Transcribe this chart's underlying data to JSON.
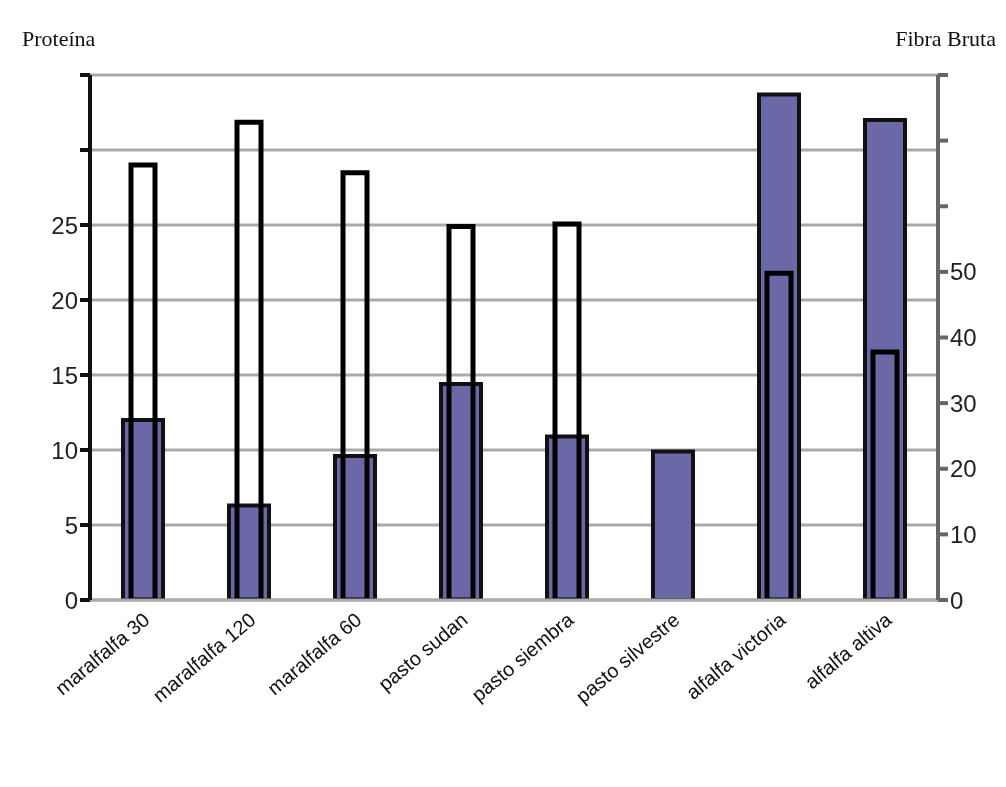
{
  "chart_data": {
    "type": "bar",
    "ylabel": "Proteína",
    "y2label": "Fibra Bruta",
    "categories": [
      "maralfalfa 30",
      "maralfalfa 120",
      "maralfalfa 60",
      "pasto sudan",
      "pasto siembra",
      "pasto silvestre",
      "alfalfa victoria",
      "alfalfa altiva"
    ],
    "series": [
      {
        "color": "#6b68a8",
        "axis": "y",
        "values": [
          12.0,
          6.3,
          9.6,
          14.4,
          10.9,
          9.9,
          33.7,
          32.0
        ]
      },
      {
        "color": "#000000",
        "axis": "y2",
        "values": [
          66.3,
          72.8,
          65.1,
          56.9,
          57.3,
          null,
          49.8,
          37.8
        ]
      }
    ],
    "ylim": [
      0,
      35
    ],
    "yticks": [
      0,
      5,
      10,
      15,
      20,
      25,
      {
        "value": 30,
        "label": null
      },
      {
        "value": 35,
        "label": null
      }
    ],
    "y2lim": [
      0,
      80
    ],
    "y2ticks": [
      0,
      10,
      20,
      30,
      40,
      50,
      {
        "value": 60,
        "label": null
      },
      {
        "value": 70,
        "label": null
      },
      {
        "value": 80,
        "label": null
      }
    ],
    "grid": "y"
  }
}
